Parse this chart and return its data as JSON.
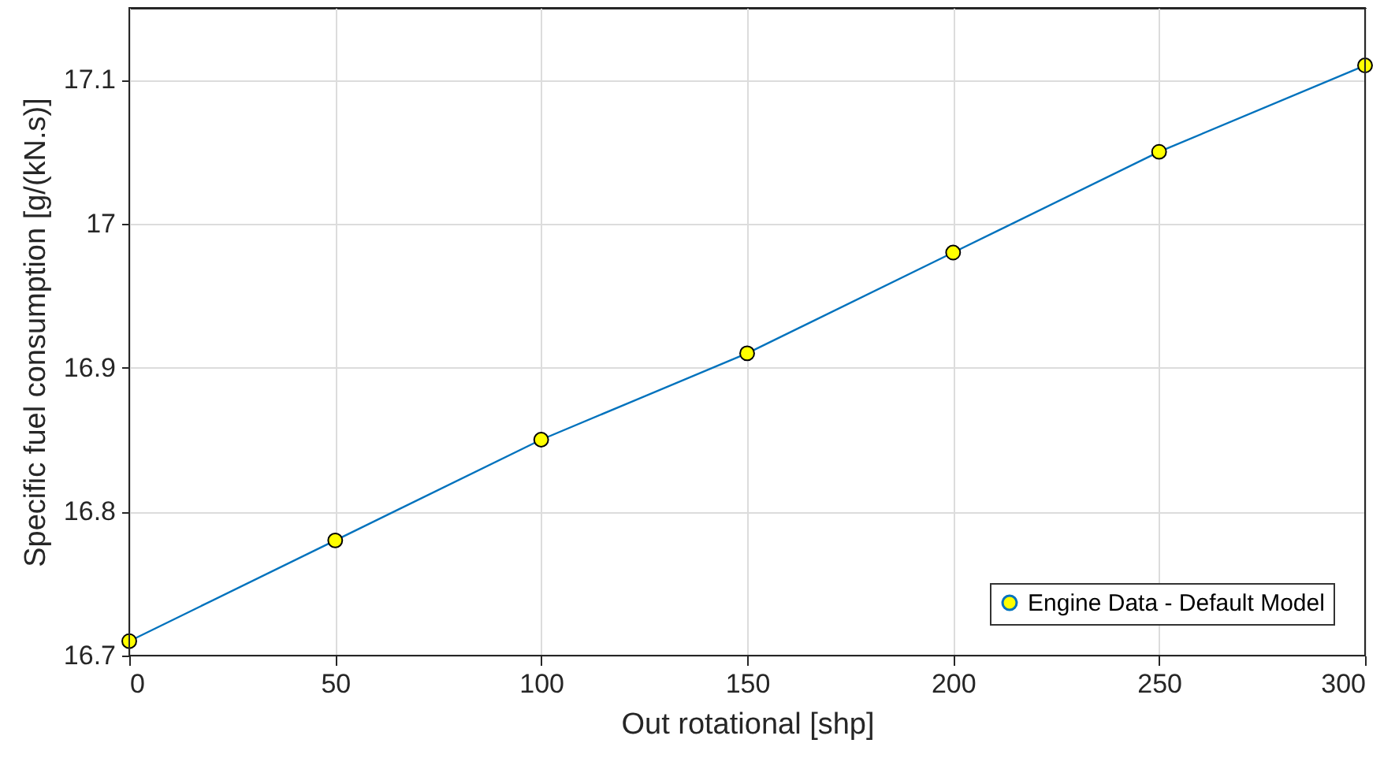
{
  "chart_data": {
    "type": "line",
    "xlabel": "Out rotational [shp]",
    "ylabel": "Specific fuel consumption [g/(kN.s)]",
    "x": [
      0,
      50,
      100,
      150,
      200,
      250,
      300
    ],
    "series": [
      {
        "name": "Engine Data - Default Model",
        "color": "#0072bd",
        "values": [
          16.71,
          16.78,
          16.85,
          16.91,
          16.98,
          17.05,
          17.11
        ]
      }
    ],
    "xlim": [
      0,
      300
    ],
    "xticks": [
      0,
      50,
      100,
      150,
      200,
      250,
      300
    ],
    "ylim": [
      16.7,
      17.15
    ],
    "yticks": [
      16.7,
      16.8,
      16.9,
      17,
      17.1
    ],
    "grid": true,
    "legend": "bottom right",
    "marker": "circle",
    "line_style": "solid"
  }
}
